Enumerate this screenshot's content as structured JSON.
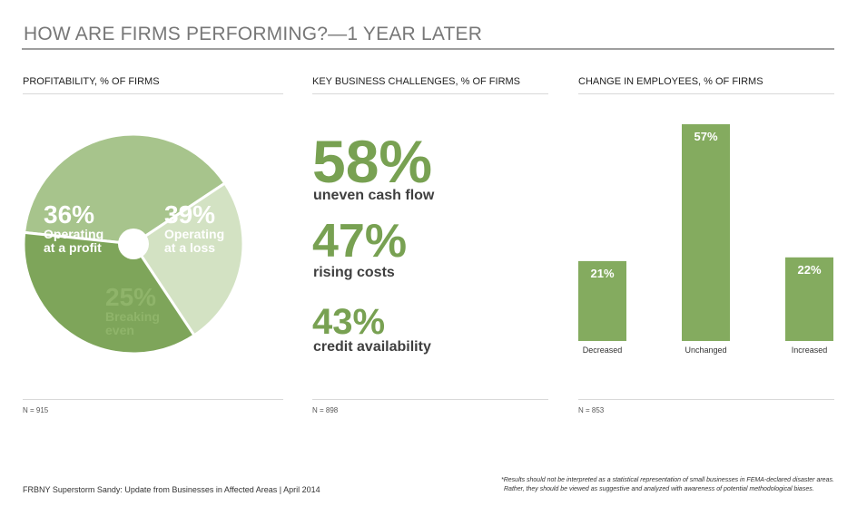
{
  "title": "HOW ARE FIRMS PERFORMING?—1 YEAR LATER",
  "footer": "FRBNY Superstorm Sandy: Update from Businesses in Affected Areas | April 2014",
  "disclaimer_line1": "*Results should not be interpreted as a statistical representation of small businesses in FEMA-declared disaster areas.",
  "disclaimer_line2": "Rather, they should be viewed as suggestive and analyzed with awareness of potential methodological biases.",
  "chart_data": [
    {
      "type": "pie",
      "title": "PROFITABILITY, % OF FIRMS",
      "note": "N = 915",
      "slices": [
        {
          "pct_label": "39%",
          "label_line1": "Operating",
          "label_line2": "at a loss",
          "value": 39,
          "color": "#a7c48c"
        },
        {
          "pct_label": "25%",
          "label_line1": "Breaking",
          "label_line2": "even",
          "value": 25,
          "color": "#d3e2c3"
        },
        {
          "pct_label": "36%",
          "label_line1": "Operating",
          "label_line2": "at a profit",
          "value": 36,
          "color": "#7ea55a"
        }
      ]
    },
    {
      "type": "table",
      "title": "KEY BUSINESS CHALLENGES, % OF FIRMS",
      "note": "N = 898",
      "items": [
        {
          "pct_label": "58%",
          "label": "uneven cash flow",
          "value": 58
        },
        {
          "pct_label": "47%",
          "label": "rising costs",
          "value": 47
        },
        {
          "pct_label": "43%",
          "label": "credit availability",
          "value": 43
        }
      ]
    },
    {
      "type": "bar",
      "title": "CHANGE IN EMPLOYEES, % OF FIRMS",
      "note": "N = 853",
      "categories": [
        "Decreased",
        "Unchanged",
        "Increased"
      ],
      "values": [
        21,
        57,
        22
      ],
      "value_labels": [
        "21%",
        "57%",
        "22%"
      ],
      "ylim": [
        0,
        57
      ],
      "color": "#84ab5f"
    }
  ]
}
